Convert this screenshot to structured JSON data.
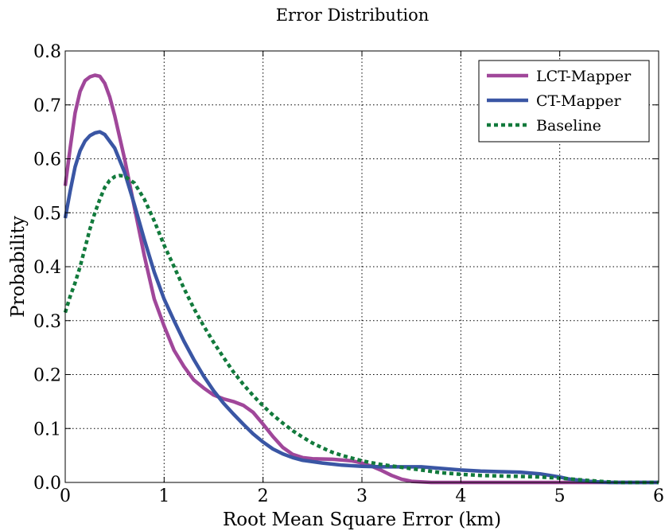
{
  "chart_data": {
    "type": "line",
    "title": "Error Distribution",
    "xlabel": "Root Mean Square Error  (km)",
    "ylabel": "Probability",
    "xlim": [
      0,
      6
    ],
    "ylim": [
      0,
      0.8
    ],
    "xticks": [
      0,
      1,
      2,
      3,
      4,
      5,
      6
    ],
    "yticks": [
      0.0,
      0.1,
      0.2,
      0.3,
      0.4,
      0.5,
      0.6,
      0.7,
      0.8
    ],
    "xtick_labels": [
      "0",
      "1",
      "2",
      "3",
      "4",
      "5",
      "6"
    ],
    "ytick_labels": [
      "0.0",
      "0.1",
      "0.2",
      "0.3",
      "0.4",
      "0.5",
      "0.6",
      "0.7",
      "0.8"
    ],
    "grid": true,
    "legend_position": "top-right",
    "series": [
      {
        "name": "LCT-Mapper",
        "color": "#a0479a",
        "style": "solid",
        "points": [
          [
            0,
            0.55
          ],
          [
            0.05,
            0.62
          ],
          [
            0.1,
            0.685
          ],
          [
            0.15,
            0.725
          ],
          [
            0.2,
            0.745
          ],
          [
            0.25,
            0.752
          ],
          [
            0.3,
            0.755
          ],
          [
            0.35,
            0.753
          ],
          [
            0.4,
            0.74
          ],
          [
            0.45,
            0.715
          ],
          [
            0.5,
            0.68
          ],
          [
            0.6,
            0.6
          ],
          [
            0.7,
            0.51
          ],
          [
            0.8,
            0.42
          ],
          [
            0.9,
            0.34
          ],
          [
            1.0,
            0.29
          ],
          [
            1.1,
            0.245
          ],
          [
            1.2,
            0.215
          ],
          [
            1.3,
            0.19
          ],
          [
            1.4,
            0.175
          ],
          [
            1.5,
            0.162
          ],
          [
            1.6,
            0.155
          ],
          [
            1.7,
            0.15
          ],
          [
            1.8,
            0.143
          ],
          [
            1.9,
            0.13
          ],
          [
            2.0,
            0.108
          ],
          [
            2.1,
            0.085
          ],
          [
            2.2,
            0.065
          ],
          [
            2.3,
            0.052
          ],
          [
            2.4,
            0.046
          ],
          [
            2.5,
            0.044
          ],
          [
            2.7,
            0.043
          ],
          [
            2.9,
            0.04
          ],
          [
            3.0,
            0.036
          ],
          [
            3.1,
            0.03
          ],
          [
            3.2,
            0.022
          ],
          [
            3.3,
            0.013
          ],
          [
            3.4,
            0.006
          ],
          [
            3.5,
            0.002
          ],
          [
            3.7,
            0.0
          ],
          [
            4.0,
            0.0
          ],
          [
            5.0,
            0.0
          ],
          [
            6.0,
            0.0
          ]
        ]
      },
      {
        "name": "CT-Mapper",
        "color": "#3a56a4",
        "style": "solid",
        "points": [
          [
            0,
            0.49
          ],
          [
            0.05,
            0.54
          ],
          [
            0.1,
            0.585
          ],
          [
            0.15,
            0.615
          ],
          [
            0.2,
            0.633
          ],
          [
            0.25,
            0.643
          ],
          [
            0.3,
            0.648
          ],
          [
            0.35,
            0.65
          ],
          [
            0.4,
            0.645
          ],
          [
            0.5,
            0.62
          ],
          [
            0.6,
            0.575
          ],
          [
            0.7,
            0.515
          ],
          [
            0.8,
            0.45
          ],
          [
            0.9,
            0.39
          ],
          [
            1.0,
            0.34
          ],
          [
            1.1,
            0.3
          ],
          [
            1.2,
            0.262
          ],
          [
            1.3,
            0.228
          ],
          [
            1.4,
            0.197
          ],
          [
            1.5,
            0.17
          ],
          [
            1.6,
            0.147
          ],
          [
            1.7,
            0.127
          ],
          [
            1.8,
            0.108
          ],
          [
            1.9,
            0.09
          ],
          [
            2.0,
            0.075
          ],
          [
            2.1,
            0.062
          ],
          [
            2.2,
            0.053
          ],
          [
            2.3,
            0.046
          ],
          [
            2.4,
            0.041
          ],
          [
            2.6,
            0.036
          ],
          [
            2.8,
            0.032
          ],
          [
            3.0,
            0.03
          ],
          [
            3.2,
            0.029
          ],
          [
            3.4,
            0.029
          ],
          [
            3.6,
            0.029
          ],
          [
            3.8,
            0.026
          ],
          [
            4.0,
            0.023
          ],
          [
            4.2,
            0.021
          ],
          [
            4.4,
            0.02
          ],
          [
            4.6,
            0.019
          ],
          [
            4.8,
            0.016
          ],
          [
            5.0,
            0.01
          ],
          [
            5.1,
            0.006
          ],
          [
            5.3,
            0.002
          ],
          [
            5.5,
            0.0
          ],
          [
            6.0,
            0.0
          ]
        ]
      },
      {
        "name": "Baseline",
        "color": "#127a3c",
        "style": "dotted",
        "points": [
          [
            0,
            0.315
          ],
          [
            0.05,
            0.345
          ],
          [
            0.1,
            0.37
          ],
          [
            0.15,
            0.4
          ],
          [
            0.2,
            0.435
          ],
          [
            0.25,
            0.47
          ],
          [
            0.3,
            0.5
          ],
          [
            0.35,
            0.525
          ],
          [
            0.4,
            0.547
          ],
          [
            0.45,
            0.56
          ],
          [
            0.5,
            0.567
          ],
          [
            0.55,
            0.569
          ],
          [
            0.6,
            0.568
          ],
          [
            0.7,
            0.555
          ],
          [
            0.8,
            0.525
          ],
          [
            0.9,
            0.485
          ],
          [
            1.0,
            0.44
          ],
          [
            1.1,
            0.4
          ],
          [
            1.2,
            0.36
          ],
          [
            1.3,
            0.323
          ],
          [
            1.4,
            0.29
          ],
          [
            1.5,
            0.26
          ],
          [
            1.6,
            0.232
          ],
          [
            1.7,
            0.205
          ],
          [
            1.8,
            0.182
          ],
          [
            1.9,
            0.161
          ],
          [
            2.0,
            0.142
          ],
          [
            2.1,
            0.125
          ],
          [
            2.2,
            0.11
          ],
          [
            2.3,
            0.096
          ],
          [
            2.4,
            0.084
          ],
          [
            2.5,
            0.073
          ],
          [
            2.6,
            0.064
          ],
          [
            2.7,
            0.056
          ],
          [
            2.8,
            0.05
          ],
          [
            2.9,
            0.045
          ],
          [
            3.0,
            0.04
          ],
          [
            3.2,
            0.033
          ],
          [
            3.4,
            0.028
          ],
          [
            3.6,
            0.023
          ],
          [
            3.8,
            0.018
          ],
          [
            4.0,
            0.015
          ],
          [
            4.2,
            0.013
          ],
          [
            4.4,
            0.012
          ],
          [
            4.6,
            0.011
          ],
          [
            4.8,
            0.01
          ],
          [
            5.0,
            0.008
          ],
          [
            5.2,
            0.005
          ],
          [
            5.4,
            0.002
          ],
          [
            5.6,
            0.0
          ],
          [
            6.0,
            0.0
          ]
        ]
      }
    ]
  }
}
